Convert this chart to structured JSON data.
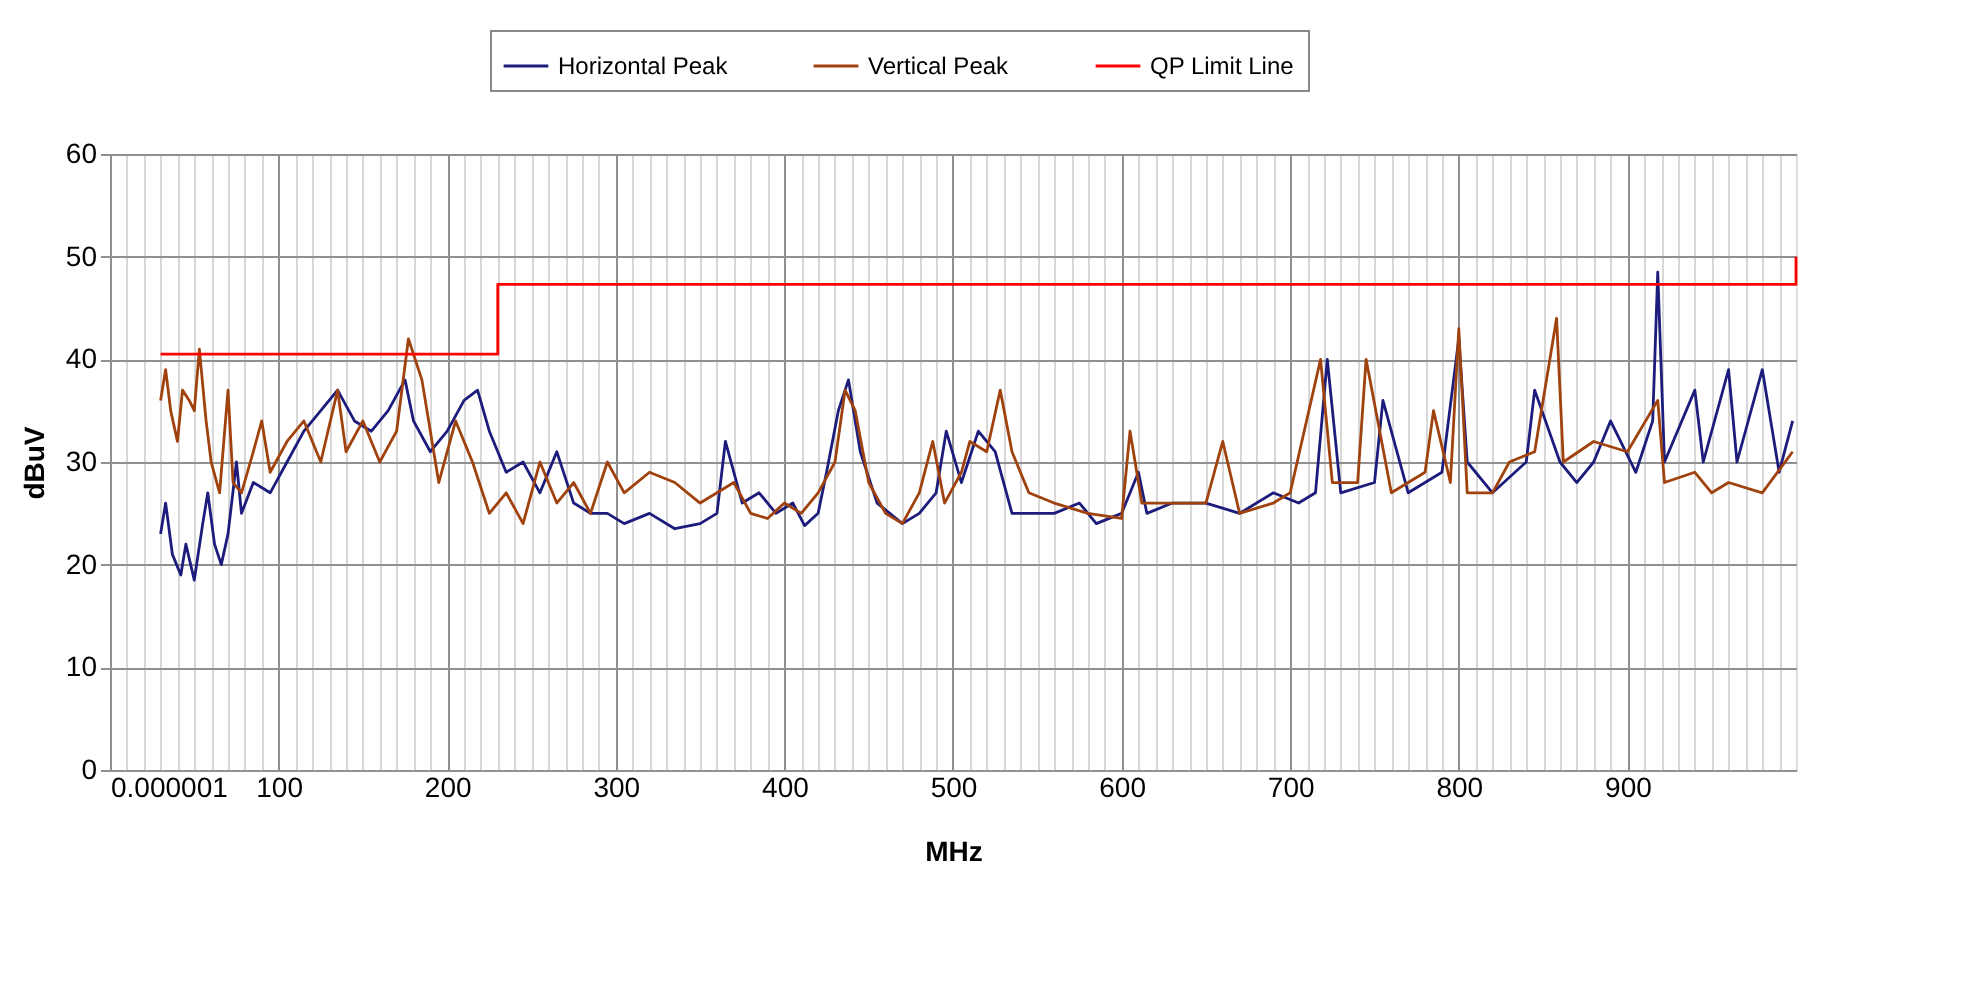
{
  "chart_data": {
    "type": "line",
    "xlabel": "MHz",
    "ylabel": "dBuV",
    "xlim": [
      1e-06,
      1000
    ],
    "ylim": [
      0,
      60
    ],
    "xticks": [
      {
        "value": 1e-06,
        "label": "0.000001"
      },
      {
        "value": 10,
        "label": null
      },
      {
        "value": 20,
        "label": null
      },
      {
        "value": 30,
        "label": null
      },
      {
        "value": 40,
        "label": null
      },
      {
        "value": 50,
        "label": null
      },
      {
        "value": 60,
        "label": null
      },
      {
        "value": 70,
        "label": null
      },
      {
        "value": 80,
        "label": null
      },
      {
        "value": 90,
        "label": null
      },
      100,
      {
        "value": 110,
        "label": null
      },
      {
        "value": 120,
        "label": null
      },
      {
        "value": 130,
        "label": null
      },
      {
        "value": 140,
        "label": null
      },
      {
        "value": 150,
        "label": null
      },
      {
        "value": 160,
        "label": null
      },
      {
        "value": 170,
        "label": null
      },
      {
        "value": 180,
        "label": null
      },
      {
        "value": 190,
        "label": null
      },
      200,
      {
        "value": 210,
        "label": null
      },
      {
        "value": 220,
        "label": null
      },
      {
        "value": 230,
        "label": null
      },
      {
        "value": 240,
        "label": null
      },
      {
        "value": 250,
        "label": null
      },
      {
        "value": 260,
        "label": null
      },
      {
        "value": 270,
        "label": null
      },
      {
        "value": 280,
        "label": null
      },
      {
        "value": 290,
        "label": null
      },
      300,
      {
        "value": 310,
        "label": null
      },
      {
        "value": 320,
        "label": null
      },
      {
        "value": 330,
        "label": null
      },
      {
        "value": 340,
        "label": null
      },
      {
        "value": 350,
        "label": null
      },
      {
        "value": 360,
        "label": null
      },
      {
        "value": 370,
        "label": null
      },
      {
        "value": 380,
        "label": null
      },
      {
        "value": 390,
        "label": null
      },
      400,
      {
        "value": 410,
        "label": null
      },
      {
        "value": 420,
        "label": null
      },
      {
        "value": 430,
        "label": null
      },
      {
        "value": 440,
        "label": null
      },
      {
        "value": 450,
        "label": null
      },
      {
        "value": 460,
        "label": null
      },
      {
        "value": 470,
        "label": null
      },
      {
        "value": 480,
        "label": null
      },
      {
        "value": 490,
        "label": null
      },
      500,
      {
        "value": 510,
        "label": null
      },
      {
        "value": 520,
        "label": null
      },
      {
        "value": 530,
        "label": null
      },
      {
        "value": 540,
        "label": null
      },
      {
        "value": 550,
        "label": null
      },
      {
        "value": 560,
        "label": null
      },
      {
        "value": 570,
        "label": null
      },
      {
        "value": 580,
        "label": null
      },
      {
        "value": 590,
        "label": null
      },
      600,
      {
        "value": 610,
        "label": null
      },
      {
        "value": 620,
        "label": null
      },
      {
        "value": 630,
        "label": null
      },
      {
        "value": 640,
        "label": null
      },
      {
        "value": 650,
        "label": null
      },
      {
        "value": 660,
        "label": null
      },
      {
        "value": 670,
        "label": null
      },
      {
        "value": 680,
        "label": null
      },
      {
        "value": 690,
        "label": null
      },
      700,
      {
        "value": 710,
        "label": null
      },
      {
        "value": 720,
        "label": null
      },
      {
        "value": 730,
        "label": null
      },
      {
        "value": 740,
        "label": null
      },
      {
        "value": 750,
        "label": null
      },
      {
        "value": 760,
        "label": null
      },
      {
        "value": 770,
        "label": null
      },
      {
        "value": 780,
        "label": null
      },
      {
        "value": 790,
        "label": null
      },
      800,
      {
        "value": 810,
        "label": null
      },
      {
        "value": 820,
        "label": null
      },
      {
        "value": 830,
        "label": null
      },
      {
        "value": 840,
        "label": null
      },
      {
        "value": 850,
        "label": null
      },
      {
        "value": 860,
        "label": null
      },
      {
        "value": 870,
        "label": null
      },
      {
        "value": 880,
        "label": null
      },
      {
        "value": 890,
        "label": null
      },
      900,
      {
        "value": 910,
        "label": null
      },
      {
        "value": 920,
        "label": null
      },
      {
        "value": 930,
        "label": null
      },
      {
        "value": 940,
        "label": null
      },
      {
        "value": 950,
        "label": null
      },
      {
        "value": 960,
        "label": null
      },
      {
        "value": 970,
        "label": null
      },
      {
        "value": 980,
        "label": null
      },
      {
        "value": 990,
        "label": null
      }
    ],
    "yticks": [
      0,
      10,
      20,
      30,
      40,
      50,
      60
    ],
    "grid": true,
    "legend": "top",
    "marker": "none",
    "line_style": "solid",
    "series": [
      {
        "name": "Horizontal Peak",
        "color": "#1c1c7c",
        "x": [
          30,
          33,
          37,
          42,
          45,
          50,
          55,
          58,
          62,
          66,
          70,
          75,
          78,
          85,
          95,
          105,
          115,
          125,
          135,
          145,
          155,
          165,
          175,
          180,
          190,
          200,
          210,
          218,
          225,
          235,
          245,
          255,
          265,
          275,
          285,
          295,
          305,
          320,
          335,
          350,
          360,
          365,
          375,
          385,
          395,
          405,
          412,
          420,
          425,
          432,
          438,
          445,
          455,
          470,
          480,
          490,
          496,
          505,
          515,
          525,
          535,
          545,
          560,
          575,
          585,
          600,
          610,
          615,
          630,
          650,
          670,
          690,
          705,
          715,
          722,
          730,
          750,
          755,
          770,
          790,
          800,
          805,
          820,
          840,
          845,
          860,
          870,
          880,
          890,
          905,
          915,
          918,
          922,
          940,
          945,
          960,
          965,
          980,
          990,
          998
        ],
        "values": [
          23,
          26,
          21,
          19,
          22,
          18.5,
          24,
          27,
          22,
          20,
          23,
          30,
          25,
          28,
          27,
          30,
          33,
          35,
          37,
          34,
          33,
          35,
          38,
          34,
          31,
          33,
          36,
          37,
          33,
          29,
          30,
          27,
          31,
          26,
          25,
          25,
          24,
          25,
          23.5,
          24,
          25,
          32,
          26,
          27,
          25,
          26,
          23.8,
          25,
          29,
          35,
          38,
          31,
          26,
          24,
          25,
          27,
          33,
          28,
          33,
          31,
          25,
          25,
          25,
          26,
          24,
          25,
          29,
          25,
          26,
          26,
          25,
          27,
          26,
          27,
          40,
          27,
          28,
          36,
          27,
          29,
          42,
          30,
          27,
          30,
          37,
          30,
          28,
          30,
          34,
          29,
          34,
          48.5,
          30,
          37,
          30,
          39,
          30,
          39,
          29,
          34
        ]
      },
      {
        "name": "Vertical Peak",
        "color": "#a0420e",
        "x": [
          30,
          33,
          36,
          40,
          43,
          47,
          50,
          53,
          57,
          60,
          65,
          70,
          73,
          78,
          85,
          90,
          95,
          105,
          115,
          125,
          135,
          140,
          150,
          160,
          170,
          177,
          185,
          195,
          205,
          215,
          225,
          235,
          245,
          255,
          265,
          275,
          285,
          295,
          305,
          320,
          335,
          350,
          360,
          370,
          380,
          390,
          400,
          410,
          420,
          430,
          436,
          442,
          450,
          460,
          470,
          480,
          488,
          495,
          505,
          510,
          520,
          528,
          535,
          545,
          560,
          580,
          600,
          605,
          612,
          630,
          650,
          660,
          670,
          690,
          700,
          718,
          725,
          740,
          745,
          760,
          780,
          785,
          795,
          800,
          805,
          820,
          830,
          845,
          858,
          862,
          880,
          900,
          918,
          922,
          940,
          950,
          960,
          980,
          998
        ],
        "values": [
          36,
          39,
          35,
          32,
          37,
          36,
          35,
          41,
          34,
          30,
          27,
          37,
          28,
          27,
          31,
          34,
          29,
          32,
          34,
          30,
          37,
          31,
          34,
          30,
          33,
          42,
          38,
          28,
          34,
          30,
          25,
          27,
          24,
          30,
          26,
          28,
          25,
          30,
          27,
          29,
          28,
          26,
          27,
          28,
          25,
          24.5,
          26,
          25,
          27,
          30,
          37,
          35,
          28,
          25,
          24,
          27,
          32,
          26,
          29,
          32,
          31,
          37,
          31,
          27,
          26,
          25,
          24.5,
          33,
          26,
          26,
          26,
          32,
          25,
          26,
          27,
          40,
          28,
          28,
          40,
          27,
          29,
          35,
          28,
          43,
          27,
          27,
          30,
          31,
          44,
          30,
          32,
          31,
          36,
          28,
          29,
          27,
          28,
          27,
          31
        ]
      },
      {
        "name": "QP Limit Line",
        "color": "#ff0000",
        "x": [
          30,
          230,
          230,
          1000,
          1000
        ],
        "values": [
          40.5,
          40.5,
          47.3,
          47.3,
          50
        ]
      }
    ]
  }
}
